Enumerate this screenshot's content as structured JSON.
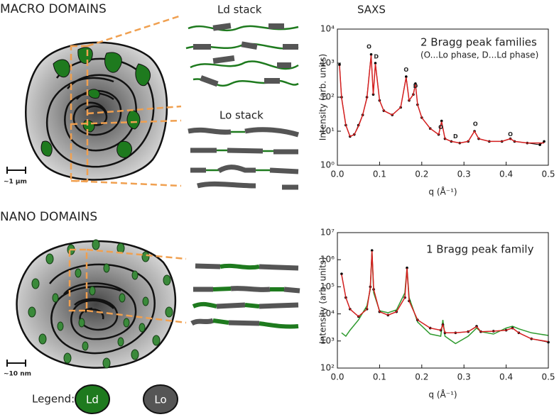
{
  "labels": {
    "macro": "MACRO DOMAINS",
    "nano": "NANO DOMAINS",
    "saxs": "SAXS",
    "ld_stack": "Ld stack",
    "lo_stack": "Lo stack",
    "scale_macro": "~1 µm",
    "scale_nano": "~10 nm"
  },
  "legend": {
    "title": "Legend:",
    "items": [
      {
        "label": "Ld",
        "color": "#1e7a1e"
      },
      {
        "label": "Lo",
        "color": "#555555"
      }
    ]
  },
  "chart_data": [
    {
      "type": "line",
      "log_y": true,
      "xlabel": "q (Å⁻¹)",
      "ylabel": "Intensity (arb. units)",
      "annotations": [
        "2 Bragg peak families",
        "(O...Lo phase, D...Ld phase)"
      ],
      "peak_labels": [
        {
          "text": "O",
          "x": 0.075,
          "y": 3000
        },
        {
          "text": "D",
          "x": 0.092,
          "y": 1550
        },
        {
          "text": "O",
          "x": 0.163,
          "y": 630
        },
        {
          "text": "D",
          "x": 0.185,
          "y": 210
        },
        {
          "text": "O",
          "x": 0.245,
          "y": 13
        },
        {
          "text": "D",
          "x": 0.28,
          "y": 7
        },
        {
          "text": "O",
          "x": 0.327,
          "y": 16
        },
        {
          "text": "O",
          "x": 0.41,
          "y": 8
        }
      ],
      "xlim": [
        0,
        0.5
      ],
      "xticks": [
        {
          "value": 0,
          "label": "0.0"
        },
        0.1,
        0.2,
        0.3,
        0.4,
        0.5
      ],
      "ylim": [
        1,
        10000
      ],
      "yticks": [
        {
          "value": 1,
          "label": "10⁰"
        },
        {
          "value": 10,
          "label": "10¹"
        },
        {
          "value": 100,
          "label": "10²"
        },
        {
          "value": 1000,
          "label": "10³"
        },
        {
          "value": 10000,
          "label": "10⁴"
        }
      ],
      "x": [
        0.005,
        0.01,
        0.02,
        0.03,
        0.04,
        0.05,
        0.06,
        0.07,
        0.08,
        0.085,
        0.09,
        0.1,
        0.11,
        0.13,
        0.15,
        0.163,
        0.17,
        0.18,
        0.185,
        0.19,
        0.2,
        0.22,
        0.24,
        0.247,
        0.255,
        0.27,
        0.29,
        0.31,
        0.325,
        0.335,
        0.36,
        0.39,
        0.41,
        0.42,
        0.45,
        0.48,
        0.49
      ],
      "series": [
        {
          "color": "#000000",
          "markers": true,
          "values": [
            900,
            100,
            15,
            7,
            8,
            15,
            30,
            100,
            1800,
            120,
            1000,
            80,
            40,
            30,
            50,
            400,
            80,
            120,
            250,
            60,
            25,
            12,
            8,
            20,
            6,
            5,
            4.5,
            5,
            10,
            6,
            5,
            5,
            6,
            5,
            4.5,
            4,
            5
          ]
        },
        {
          "color": "#d62020",
          "markers": false,
          "values": [
            850,
            95,
            15,
            7,
            8,
            14,
            30,
            95,
            1700,
            120,
            950,
            80,
            40,
            30,
            50,
            380,
            80,
            120,
            240,
            60,
            25,
            12,
            8,
            19,
            6,
            5,
            4.5,
            5,
            10,
            6,
            5,
            5,
            6,
            5,
            4.5,
            4.5,
            4.5
          ]
        }
      ]
    },
    {
      "type": "line",
      "log_y": true,
      "xlabel": "q (Å⁻¹)",
      "ylabel": "Intensity (arb. units)",
      "annotations": [
        "1 Bragg peak family"
      ],
      "peak_labels": [],
      "xlim": [
        0,
        0.5
      ],
      "xticks": [
        {
          "value": 0,
          "label": "0.0"
        },
        0.1,
        0.2,
        0.3,
        0.4,
        0.5
      ],
      "ylim": [
        100,
        10000000
      ],
      "yticks": [
        {
          "value": 100,
          "label": "10²"
        },
        {
          "value": 1000,
          "label": "10³"
        },
        {
          "value": 10000,
          "label": "10⁴"
        },
        {
          "value": 100000,
          "label": "10⁵"
        },
        {
          "value": 1000000,
          "label": "10⁶"
        },
        {
          "value": 10000000,
          "label": "10⁷"
        }
      ],
      "x": [
        0.01,
        0.02,
        0.03,
        0.05,
        0.07,
        0.078,
        0.082,
        0.086,
        0.1,
        0.12,
        0.14,
        0.16,
        0.165,
        0.17,
        0.19,
        0.22,
        0.245,
        0.25,
        0.255,
        0.28,
        0.31,
        0.33,
        0.34,
        0.37,
        0.4,
        0.415,
        0.43,
        0.46,
        0.5
      ],
      "series": [
        {
          "color": "#2e9a2e",
          "markers": false,
          "values": [
            2000,
            1500,
            2500,
            6000,
            20000,
            80000,
            2000000,
            60000,
            13000,
            11000,
            14000,
            60000,
            500000,
            40000,
            5000,
            1800,
            1500,
            6000,
            1500,
            800,
            1500,
            3000,
            2200,
            1800,
            3000,
            3500,
            2800,
            2000,
            1600
          ]
        },
        {
          "color": "#000000",
          "markers": true,
          "values": [
            300000,
            40000,
            15000,
            8000,
            15000,
            100000,
            2200000,
            80000,
            12000,
            9000,
            12000,
            40000,
            500000,
            30000,
            6000,
            3000,
            2500,
            4000,
            2000,
            2000,
            2200,
            3500,
            2200,
            2300,
            2500,
            3000,
            2000,
            1200,
            900
          ]
        },
        {
          "color": "#d62020",
          "markers": false,
          "values": [
            280000,
            40000,
            15000,
            8000,
            15000,
            95000,
            2100000,
            80000,
            12000,
            9000,
            12000,
            40000,
            480000,
            30000,
            6000,
            3000,
            2500,
            4000,
            2000,
            2000,
            2200,
            3400,
            2200,
            2300,
            2500,
            3000,
            2000,
            1200,
            950
          ]
        }
      ]
    }
  ]
}
